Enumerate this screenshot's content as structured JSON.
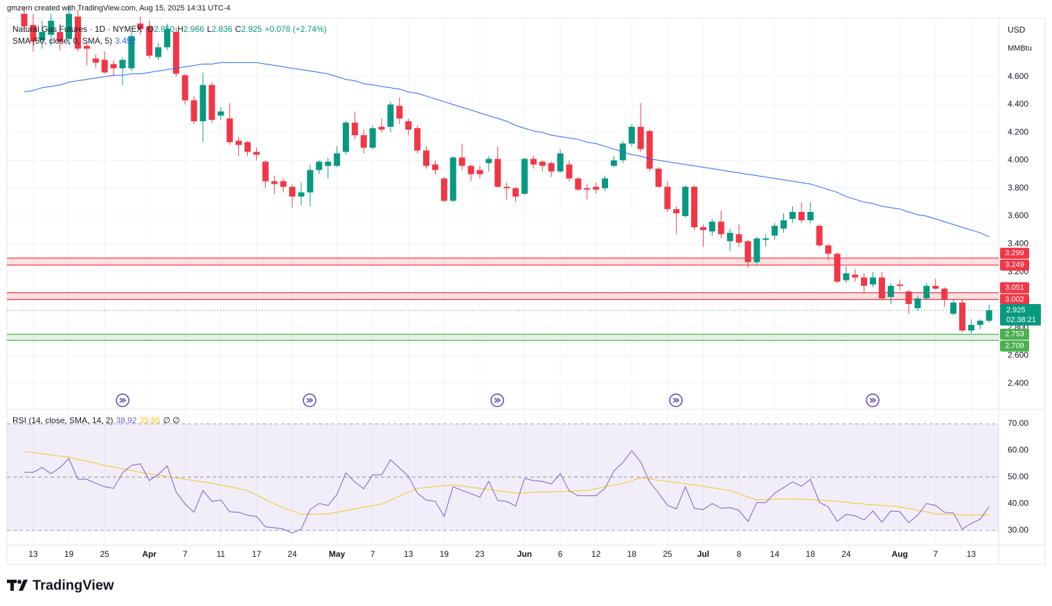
{
  "chart_data": {
    "type": "candlestick",
    "credit": "gmzern created with TradingView.com, Aug 15, 2025 14:31 UTC-4",
    "title": "Natural Gas Futures · 1D · NYMEX",
    "ohlc_labels": [
      {
        "key": "O",
        "value": "2.850"
      },
      {
        "key": "H",
        "value": "2.966"
      },
      {
        "key": "L",
        "value": "2.836"
      },
      {
        "key": "C",
        "value": "2.925"
      }
    ],
    "change": "+0.078 (+2.74%)",
    "currency": "USD",
    "unit": "MMBtu",
    "brand": "TradingView",
    "up_color": "#089981",
    "down_color": "#f23645",
    "open": [
      5.05,
      4.97,
      4.86,
      4.9,
      4.92,
      4.87,
      5.03,
      4.82,
      4.73,
      4.72,
      4.69,
      4.66,
      4.66,
      4.98,
      4.96,
      4.74,
      4.81,
      4.92,
      4.61,
      4.43,
      4.28,
      4.54,
      4.32,
      4.3,
      4.14,
      4.13,
      4.06,
      3.99,
      3.85,
      3.85,
      3.81,
      3.74,
      3.77,
      3.93,
      3.96,
      3.96,
      4.06,
      4.27,
      4.18,
      4.09,
      4.24,
      4.24,
      4.39,
      4.28,
      4.23,
      4.07,
      3.97,
      3.87,
      3.71,
      4.02,
      3.96,
      3.93,
      3.98,
      4.01,
      3.81,
      3.8,
      3.76,
      4.01,
      3.99,
      3.98,
      3.92,
      3.97,
      3.87,
      3.8,
      3.81,
      3.8,
      3.96,
      4.0,
      4.12,
      4.24,
      4.21,
      3.94,
      3.81,
      3.65,
      3.6,
      3.81,
      3.52,
      3.49,
      3.56,
      3.42,
      3.47,
      3.42,
      3.27,
      3.43,
      3.46,
      3.51,
      3.58,
      3.63,
      3.57,
      3.53,
      3.39,
      3.33,
      3.14,
      3.18,
      3.16,
      3.11,
      3.16,
      3.02,
      3.11,
      3.06,
      2.94,
      3.01,
      3.1,
      3.08,
      2.9,
      2.98,
      2.78,
      2.82,
      2.85
    ],
    "high": [
      5.1,
      5.05,
      5.0,
      5.05,
      4.98,
      5.1,
      5.08,
      4.85,
      4.76,
      4.78,
      4.72,
      4.74,
      4.92,
      5.03,
      5.0,
      4.84,
      4.98,
      4.95,
      4.62,
      4.46,
      4.63,
      4.56,
      4.38,
      4.41,
      4.17,
      4.14,
      4.09,
      4.0,
      3.89,
      3.87,
      3.83,
      3.84,
      3.97,
      4.0,
      4.02,
      4.1,
      4.28,
      4.35,
      4.22,
      4.25,
      4.3,
      4.42,
      4.45,
      4.3,
      4.25,
      4.1,
      4.0,
      3.88,
      4.03,
      4.12,
      3.97,
      3.96,
      4.03,
      4.1,
      3.84,
      3.81,
      4.02,
      4.03,
      4.0,
      3.99,
      4.08,
      4.0,
      3.88,
      3.83,
      3.84,
      3.89,
      4.03,
      4.14,
      4.26,
      4.41,
      4.22,
      3.95,
      3.85,
      3.67,
      3.82,
      3.82,
      3.54,
      3.58,
      3.64,
      3.51,
      3.54,
      3.43,
      3.45,
      3.47,
      3.55,
      3.62,
      3.67,
      3.7,
      3.7,
      3.54,
      3.4,
      3.34,
      3.24,
      3.22,
      3.19,
      3.2,
      3.2,
      3.12,
      3.14,
      3.07,
      3.03,
      3.12,
      3.15,
      3.09,
      3.0,
      3.0,
      2.86,
      2.86,
      2.966
    ],
    "low": [
      4.92,
      4.78,
      4.8,
      4.82,
      4.79,
      4.83,
      4.78,
      4.68,
      4.66,
      4.62,
      4.6,
      4.54,
      4.64,
      4.9,
      4.73,
      4.72,
      4.79,
      4.6,
      4.4,
      4.26,
      4.13,
      4.27,
      4.29,
      4.11,
      4.03,
      4.03,
      4.0,
      3.8,
      3.76,
      3.77,
      3.66,
      3.68,
      3.67,
      3.9,
      3.87,
      3.95,
      4.04,
      4.15,
      4.05,
      4.08,
      4.2,
      4.2,
      4.26,
      4.18,
      4.05,
      3.94,
      3.9,
      3.7,
      3.7,
      3.93,
      3.85,
      3.87,
      3.92,
      3.8,
      3.72,
      3.7,
      3.75,
      3.94,
      3.92,
      3.88,
      3.91,
      3.85,
      3.78,
      3.72,
      3.76,
      3.78,
      3.95,
      3.98,
      4.1,
      4.06,
      3.92,
      3.8,
      3.63,
      3.47,
      3.59,
      3.5,
      3.38,
      3.46,
      3.44,
      3.35,
      3.38,
      3.23,
      3.25,
      3.38,
      3.43,
      3.48,
      3.55,
      3.55,
      3.55,
      3.38,
      3.28,
      3.12,
      3.12,
      3.13,
      3.05,
      3.09,
      3.0,
      2.97,
      3.07,
      2.9,
      2.92,
      3.0,
      3.07,
      2.95,
      2.89,
      2.77,
      2.76,
      2.79,
      2.836
    ],
    "close": [
      4.96,
      4.85,
      4.92,
      5.0,
      4.85,
      5.05,
      4.8,
      4.8,
      4.7,
      4.63,
      4.66,
      4.72,
      4.89,
      4.94,
      4.75,
      4.81,
      4.94,
      4.62,
      4.43,
      4.28,
      4.54,
      4.29,
      4.35,
      4.13,
      4.11,
      4.06,
      4.04,
      3.85,
      3.83,
      3.81,
      3.74,
      3.77,
      3.93,
      3.99,
      3.99,
      4.05,
      4.27,
      4.18,
      4.09,
      4.23,
      4.22,
      4.4,
      4.3,
      4.22,
      4.07,
      3.96,
      3.93,
      3.71,
      4.02,
      3.96,
      3.9,
      3.9,
      4.01,
      3.81,
      3.8,
      3.74,
      4.01,
      3.97,
      3.96,
      3.92,
      4.05,
      3.87,
      3.79,
      3.79,
      3.79,
      3.87,
      4.0,
      4.12,
      4.24,
      4.08,
      3.94,
      3.81,
      3.65,
      3.62,
      3.81,
      3.52,
      3.5,
      3.56,
      3.47,
      3.48,
      3.41,
      3.27,
      3.44,
      3.44,
      3.53,
      3.57,
      3.63,
      3.57,
      3.63,
      3.39,
      3.33,
      3.13,
      3.19,
      3.16,
      3.1,
      3.16,
      3.01,
      3.1,
      3.1,
      2.97,
      3.01,
      3.1,
      3.08,
      3.0,
      2.98,
      2.78,
      2.82,
      2.85,
      2.925
    ],
    "xlim": [
      -1.94,
      109.07
    ],
    "xticks": [
      {
        "value": 1,
        "label": "13"
      },
      {
        "value": 5,
        "label": "19"
      },
      {
        "value": 9,
        "label": "25"
      },
      {
        "value": 14,
        "label": "Apr"
      },
      {
        "value": 18,
        "label": "7"
      },
      {
        "value": 22,
        "label": "11"
      },
      {
        "value": 26,
        "label": "17"
      },
      {
        "value": 30,
        "label": "24"
      },
      {
        "value": 35,
        "label": "May"
      },
      {
        "value": 39,
        "label": "7"
      },
      {
        "value": 43,
        "label": "13"
      },
      {
        "value": 47,
        "label": "19"
      },
      {
        "value": 51,
        "label": "23"
      },
      {
        "value": 56,
        "label": "Jun"
      },
      {
        "value": 60,
        "label": "6"
      },
      {
        "value": 64,
        "label": "12"
      },
      {
        "value": 68,
        "label": "18"
      },
      {
        "value": 72,
        "label": "25"
      },
      {
        "value": 76,
        "label": "Jul"
      },
      {
        "value": 80,
        "label": "8"
      },
      {
        "value": 84,
        "label": "14"
      },
      {
        "value": 88,
        "label": "18"
      },
      {
        "value": 92,
        "label": "24"
      },
      {
        "value": 98,
        "label": "Aug"
      },
      {
        "value": 102,
        "label": "7"
      },
      {
        "value": 106,
        "label": "13"
      }
    ],
    "ylim": [
      2.22,
      5.01
    ],
    "yticks": [
      {
        "value": 2.4,
        "label": "2.400"
      },
      {
        "value": 2.6,
        "label": "2.600"
      },
      {
        "value": 2.8,
        "label": "2.800"
      },
      {
        "value": 3.0,
        "label": "3.000"
      },
      {
        "value": 3.2,
        "label": "3.200"
      },
      {
        "value": 3.4,
        "label": "3.400"
      },
      {
        "value": 3.6,
        "label": "3.600"
      },
      {
        "value": 3.8,
        "label": "3.800"
      },
      {
        "value": 4.0,
        "label": "4.000"
      },
      {
        "value": 4.2,
        "label": "4.200"
      },
      {
        "value": 4.4,
        "label": "4.400"
      },
      {
        "value": 4.6,
        "label": "4.600"
      }
    ],
    "grid": true,
    "sma": {
      "name": "SMA (50, close, 0, SMA, 5)",
      "color": "#2962ff",
      "values": [
        4.49,
        4.5,
        4.52,
        4.53,
        4.54,
        4.56,
        4.57,
        4.58,
        4.59,
        4.6,
        4.61,
        4.61,
        4.62,
        4.62,
        4.63,
        4.64,
        4.65,
        4.66,
        4.67,
        4.68,
        4.69,
        4.69,
        4.7,
        4.7,
        4.7,
        4.7,
        4.7,
        4.69,
        4.68,
        4.67,
        4.66,
        4.65,
        4.64,
        4.63,
        4.62,
        4.6,
        4.58,
        4.57,
        4.55,
        4.54,
        4.53,
        4.52,
        4.51,
        4.49,
        4.48,
        4.46,
        4.44,
        4.42,
        4.4,
        4.38,
        4.36,
        4.34,
        4.32,
        4.3,
        4.28,
        4.25,
        4.23,
        4.21,
        4.2,
        4.18,
        4.17,
        4.16,
        4.15,
        4.13,
        4.12,
        4.1,
        4.08,
        4.06,
        4.04,
        4.03,
        4.01,
        4.0,
        3.99,
        3.98,
        3.97,
        3.96,
        3.95,
        3.94,
        3.93,
        3.92,
        3.91,
        3.9,
        3.89,
        3.88,
        3.87,
        3.86,
        3.85,
        3.84,
        3.83,
        3.81,
        3.79,
        3.77,
        3.74,
        3.72,
        3.7,
        3.69,
        3.67,
        3.66,
        3.65,
        3.63,
        3.61,
        3.6,
        3.58,
        3.56,
        3.54,
        3.52,
        3.5,
        3.48,
        3.452
      ]
    },
    "zones": [
      {
        "high": 3.299,
        "low": 3.249,
        "color": "#f23645"
      },
      {
        "high": 3.051,
        "low": 3.002,
        "color": "#f23645"
      },
      {
        "high": 2.753,
        "low": 2.709,
        "color": "#4caf50"
      }
    ],
    "countdown": "02:38:21",
    "rsi": {
      "name": "RSI (14, close, SMA, 14, 2)",
      "color": "#7e57c2",
      "sma_color": "#f5c518",
      "placeholders": "∅ ∅",
      "values": [
        51.8,
        51.8,
        53.6,
        51.3,
        53.6,
        57,
        49.2,
        49.2,
        47.7,
        46.4,
        45.8,
        51.6,
        54.4,
        55,
        48.7,
        51,
        54.2,
        44.5,
        39.9,
        36.8,
        45,
        40.9,
        41.4,
        37,
        36.8,
        35.7,
        35.2,
        31.3,
        31,
        30.5,
        29,
        30.5,
        37.8,
        40.1,
        39.4,
        43.5,
        51.6,
        48.2,
        45.6,
        50.8,
        50.8,
        56.5,
        53.4,
        50.3,
        44,
        41.4,
        40.9,
        35.2,
        46.4,
        45,
        43.8,
        42.5,
        48.4,
        41.2,
        40.9,
        39.1,
        49.5,
        48.7,
        48.4,
        47.4,
        51.3,
        44.8,
        43,
        43,
        43,
        45.8,
        52.3,
        55.5,
        59.9,
        55.7,
        48.2,
        44,
        39.4,
        38.1,
        46.4,
        38.3,
        37.8,
        40.1,
        38.3,
        38.6,
        37.5,
        33.4,
        40.4,
        40.4,
        44,
        46.1,
        48.2,
        46.6,
        49.2,
        40.6,
        38.8,
        33.4,
        36,
        35.5,
        33.9,
        37.3,
        33.1,
        37.3,
        37,
        32.9,
        35.7,
        40.1,
        39.4,
        36.8,
        36.5,
        30.5,
        32.6,
        34.2,
        38.92
      ],
      "sma_values": [
        59.6,
        59.2,
        58.8,
        58.3,
        57.9,
        57.5,
        56.7,
        56.0,
        55.2,
        54.4,
        53.8,
        53.1,
        52.5,
        51.8,
        51.3,
        50.8,
        50.2,
        49.7,
        49.2,
        48.7,
        48.2,
        47.7,
        47.0,
        46.4,
        45.7,
        45.0,
        43.3,
        41.6,
        39.9,
        38.6,
        37.3,
        36.0,
        36.1,
        36.1,
        36.2,
        36.8,
        37.4,
        38.1,
        38.7,
        39.3,
        39.9,
        41.4,
        42.9,
        44.3,
        45.8,
        46.1,
        46.5,
        46.8,
        47.1,
        46.7,
        46.2,
        45.8,
        45.4,
        44.9,
        44.5,
        44.0,
        44.1,
        44.3,
        44.4,
        44.5,
        44.6,
        44.7,
        44.9,
        45.0,
        45.7,
        46.4,
        47.0,
        47.7,
        48.7,
        49.7,
        49.3,
        48.8,
        48.4,
        48.0,
        47.5,
        47.1,
        46.6,
        46.0,
        45.5,
        45.0,
        43.8,
        42.6,
        41.4,
        41.5,
        41.7,
        41.8,
        41.9,
        41.7,
        41.6,
        41.4,
        41.2,
        40.9,
        40.6,
        40.2,
        39.9,
        39.6,
        39.4,
        39.1,
        38.8,
        38.2,
        37.5,
        36.9,
        36.2,
        36.1,
        36.0,
        35.8,
        35.7,
        35.8,
        35.85
      ],
      "ylim": [
        24.5,
        75.2
      ],
      "yticks": [
        {
          "value": 30,
          "label": "30.00"
        },
        {
          "value": 40,
          "label": "40.00"
        },
        {
          "value": 50,
          "label": "50.00"
        },
        {
          "value": 60,
          "label": "60.00"
        },
        {
          "value": 70,
          "label": "70.00"
        }
      ],
      "levels": [
        30,
        50,
        70
      ]
    }
  }
}
